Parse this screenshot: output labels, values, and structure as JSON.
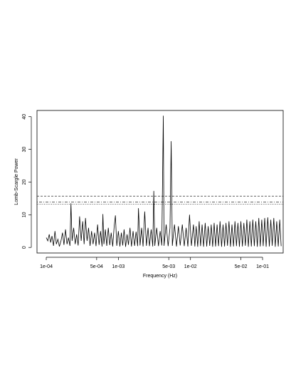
{
  "chart_data": {
    "type": "line",
    "xlabel": "Frequency (Hz)",
    "ylabel": "Lomb-Scargle Power",
    "xscale": "log",
    "xlim": [
      7.44e-05,
      0.193
    ],
    "ylim": [
      -1.7,
      41.9
    ],
    "xticks": [
      {
        "value": 0.0001,
        "label": "1e-04"
      },
      {
        "value": 0.0005,
        "label": "5e-04"
      },
      {
        "value": 0.001,
        "label": "1e-03"
      },
      {
        "value": 0.005,
        "label": "5e-03"
      },
      {
        "value": 0.01,
        "label": "1e-02"
      },
      {
        "value": 0.05,
        "label": "5e-02"
      },
      {
        "value": 0.1,
        "label": "1e-01"
      }
    ],
    "yticks": [
      0,
      10,
      20,
      30,
      40
    ],
    "hlines": [
      15.7,
      13.9,
      13.2
    ],
    "hline_styles": [
      "dashed",
      "dotdash",
      "dotted"
    ],
    "color": "#000000",
    "x": [
      0.0001,
      0.000105,
      0.00011,
      0.000115,
      0.00012,
      0.000126,
      0.000132,
      0.000138,
      0.000145,
      0.000152,
      0.00016,
      0.000168,
      0.000176,
      0.000185,
      0.000194,
      0.000203,
      0.000213,
      0.00022,
      0.000228,
      0.00024,
      0.000252,
      0.000264,
      0.000277,
      0.00029,
      0.000305,
      0.00032,
      0.000335,
      0.00035,
      0.000368,
      0.000386,
      0.000405,
      0.000425,
      0.000446,
      0.000468,
      0.00049,
      0.000515,
      0.00054,
      0.000566,
      0.000594,
      0.00061,
      0.00063,
      0.00066,
      0.00069,
      0.000725,
      0.00076,
      0.000795,
      0.000835,
      0.000875,
      0.00091,
      0.00095,
      0.001,
      0.00105,
      0.0011,
      0.00115,
      0.0012,
      0.00126,
      0.00132,
      0.00138,
      0.00145,
      0.00152,
      0.0016,
      0.00168,
      0.00176,
      0.00185,
      0.0019,
      0.002,
      0.0021,
      0.0022,
      0.00232,
      0.00245,
      0.00258,
      0.0027,
      0.00285,
      0.003,
      0.0031,
      0.0032,
      0.0034,
      0.0036,
      0.0038,
      0.004,
      0.0042,
      0.0043,
      0.0046,
      0.0049,
      0.0052,
      0.0054,
      0.0056,
      0.006,
      0.0064,
      0.0068,
      0.0072,
      0.0077,
      0.0082,
      0.0087,
      0.0092,
      0.0097,
      0.0103,
      0.011,
      0.0115,
      0.012,
      0.0126,
      0.0132,
      0.0138,
      0.0145,
      0.0152,
      0.016,
      0.0168,
      0.0176,
      0.0185,
      0.0194,
      0.0203,
      0.0213,
      0.0223,
      0.0234,
      0.0245,
      0.0257,
      0.027,
      0.0283,
      0.0297,
      0.0311,
      0.0326,
      0.0342,
      0.0359,
      0.0376,
      0.0395,
      0.0414,
      0.0434,
      0.0455,
      0.0477,
      0.05,
      0.0525,
      0.055,
      0.0577,
      0.0605,
      0.0635,
      0.0666,
      0.0698,
      0.0732,
      0.0768,
      0.0805,
      0.0845,
      0.0886,
      0.0929,
      0.0974,
      0.102,
      0.107,
      0.112,
      0.118,
      0.124,
      0.13,
      0.136,
      0.143,
      0.15,
      0.157,
      0.165,
      0.173,
      0.181
    ],
    "values": [
      3,
      2,
      4,
      1.5,
      3.5,
      0.5,
      5,
      1,
      2.5,
      0.3,
      2,
      4.5,
      0.8,
      5.5,
      1,
      3,
      0.5,
      13.5,
      2,
      6,
      1,
      4,
      0.6,
      9.5,
      2,
      8,
      1,
      9,
      2,
      6,
      0.5,
      5,
      1,
      4.5,
      0.4,
      7,
      0.8,
      5,
      0.3,
      10.2,
      1,
      5.5,
      0.5,
      6,
      0.7,
      4.5,
      0.3,
      6.5,
      9.8,
      0.5,
      5,
      0.3,
      4.5,
      0.6,
      5.5,
      0.2,
      4,
      0.8,
      6,
      0.3,
      5,
      0.5,
      4.8,
      0.4,
      12,
      0.6,
      6,
      0.3,
      11,
      0.5,
      6,
      0.4,
      5.5,
      0.3,
      17.3,
      0.5,
      6,
      0.4,
      5,
      0.6,
      40.3,
      0.5,
      7,
      0.4,
      6,
      32.5,
      0.5,
      7,
      0.3,
      6.5,
      0.6,
      7,
      0.4,
      6,
      0.3,
      10,
      0.5,
      7,
      0.3,
      6.5,
      0.2,
      8,
      0.4,
      7,
      0.2,
      7.5,
      0.3,
      6.5,
      0.5,
      7,
      0.2,
      7.5,
      0.3,
      7,
      0.4,
      8,
      0.2,
      7,
      0.3,
      7.5,
      0.5,
      8,
      0.2,
      7,
      0.3,
      8,
      0.4,
      7.5,
      0.2,
      8,
      0.3,
      7.5,
      0.5,
      8.5,
      0.2,
      8,
      0.3,
      8.5,
      0.4,
      8,
      0.2,
      9,
      0.3,
      8.5,
      0.4,
      9,
      0.2,
      9.2,
      0.3,
      8.5,
      0.5,
      9,
      0.2,
      8,
      0.3,
      8.5,
      0.4
    ]
  }
}
